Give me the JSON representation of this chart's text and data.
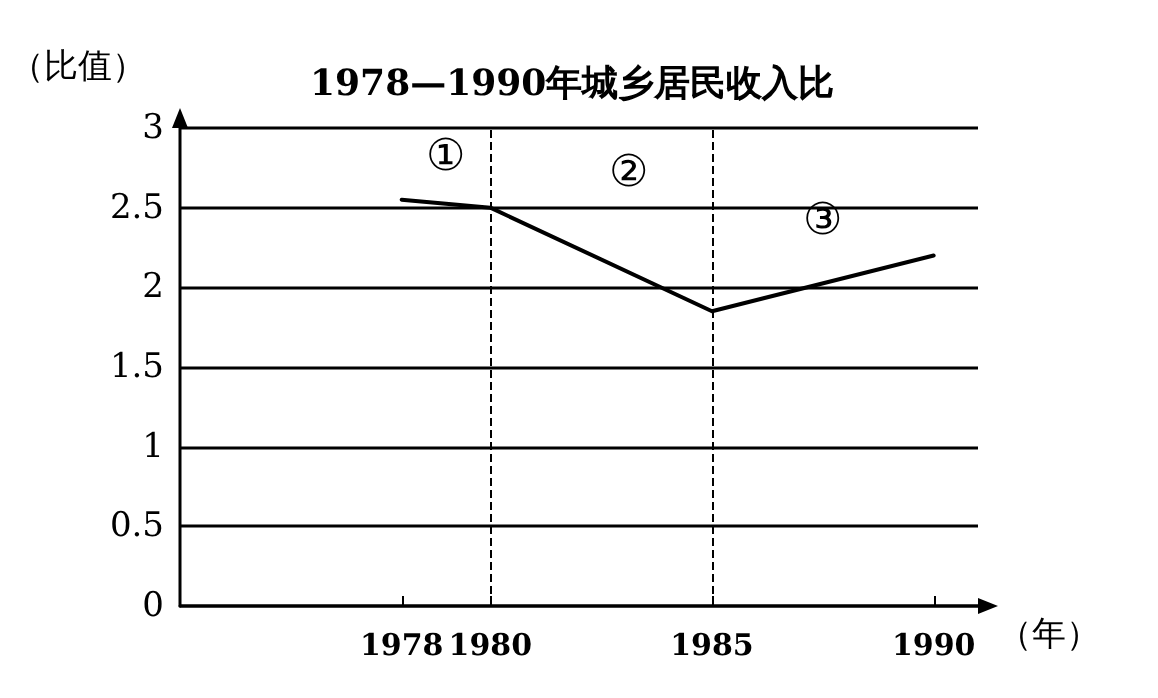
{
  "chart_data": {
    "type": "line",
    "title": "1978—1990年城乡居民收入比",
    "ylabel": "（比值）",
    "xlabel": "（年）",
    "x": [
      1978,
      1980,
      1985,
      1990
    ],
    "series": [
      {
        "color": "#000000",
        "values": [
          2.55,
          2.5,
          1.85,
          2.2
        ]
      }
    ],
    "xlim": [
      1973,
      1991
    ],
    "xticks": [
      1978,
      1980,
      1985,
      1990
    ],
    "ylim": [
      0,
      3
    ],
    "yticks": [
      0,
      0.5,
      1,
      1.5,
      2,
      2.5,
      3
    ],
    "grid": "y",
    "marker": "none",
    "line_style": "solid",
    "ref_lines": [
      {
        "axis": "x",
        "value": 1980,
        "line_style": "dashed",
        "color": "#000000"
      },
      {
        "axis": "x",
        "value": 1985,
        "line_style": "dashed",
        "color": "#000000"
      }
    ],
    "annotations": [
      "①",
      "②",
      "③"
    ]
  }
}
